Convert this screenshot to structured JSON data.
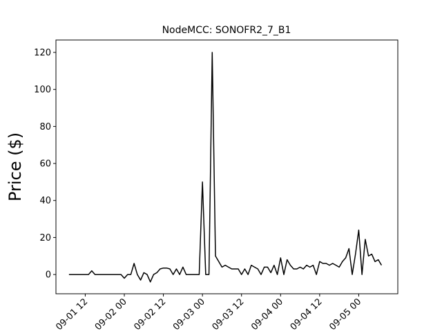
{
  "chart_data": {
    "type": "line",
    "title": "NodeMCC: SONOFR2_7_B1",
    "y_label": "Price ($)",
    "x": [
      "09-01 07",
      "09-01 08",
      "09-01 09",
      "09-01 10",
      "09-01 11",
      "09-01 12",
      "09-01 13",
      "09-01 14",
      "09-01 15",
      "09-01 16",
      "09-01 17",
      "09-01 18",
      "09-01 19",
      "09-01 20",
      "09-01 21",
      "09-01 22",
      "09-01 23",
      "09-02 00",
      "09-02 01",
      "09-02 02",
      "09-02 03",
      "09-02 04",
      "09-02 05",
      "09-02 06",
      "09-02 07",
      "09-02 08",
      "09-02 09",
      "09-02 10",
      "09-02 11",
      "09-02 12",
      "09-02 13",
      "09-02 14",
      "09-02 15",
      "09-02 16",
      "09-02 17",
      "09-02 18",
      "09-02 19",
      "09-02 20",
      "09-02 21",
      "09-02 22",
      "09-02 23",
      "09-03 00",
      "09-03 01",
      "09-03 02",
      "09-03 03",
      "09-03 04",
      "09-03 05",
      "09-03 06",
      "09-03 07",
      "09-03 08",
      "09-03 09",
      "09-03 10",
      "09-03 11",
      "09-03 12",
      "09-03 13",
      "09-03 14",
      "09-03 15",
      "09-03 16",
      "09-03 17",
      "09-03 18",
      "09-03 19",
      "09-03 20",
      "09-03 21",
      "09-03 22",
      "09-03 23",
      "09-04 00",
      "09-04 01",
      "09-04 02",
      "09-04 03",
      "09-04 04",
      "09-04 05",
      "09-04 06",
      "09-04 07",
      "09-04 08",
      "09-04 09",
      "09-04 10",
      "09-04 11",
      "09-04 12",
      "09-04 13",
      "09-04 14",
      "09-04 15",
      "09-04 16",
      "09-04 17",
      "09-04 18",
      "09-04 19",
      "09-04 20",
      "09-04 21",
      "09-04 22",
      "09-04 23",
      "09-05 00",
      "09-05 01",
      "09-05 02",
      "09-05 03",
      "09-05 04",
      "09-05 05",
      "09-05 06",
      "09-05 07"
    ],
    "series": [
      {
        "color": "#000000",
        "values": [
          0,
          0,
          0,
          0,
          0,
          0,
          0,
          2,
          0,
          0,
          0,
          0,
          0,
          0,
          0,
          0,
          0,
          -2,
          0,
          0,
          6,
          0,
          -3,
          1,
          0,
          -4,
          0,
          1,
          3,
          3.5,
          3.5,
          3,
          0,
          3,
          0,
          4,
          0,
          0,
          0,
          0,
          0,
          50,
          0,
          0,
          120,
          10,
          7,
          4,
          5,
          4,
          3,
          3,
          3,
          0,
          3,
          0,
          5,
          4,
          3,
          0,
          4,
          4,
          1,
          5,
          0,
          9,
          0,
          8,
          5,
          3,
          3,
          4,
          3,
          5,
          4,
          5,
          0,
          7,
          6,
          6,
          5,
          6,
          5,
          4,
          7,
          9,
          14,
          0,
          11,
          24,
          0,
          19,
          10,
          11,
          7,
          8,
          5
        ]
      }
    ],
    "xlim": [
      "09-01 03",
      "09-05 12"
    ],
    "xticks": [
      "09-01 12",
      "09-02 00",
      "09-02 12",
      "09-03 00",
      "09-03 12",
      "09-04 00",
      "09-04 12",
      "09-05 00"
    ],
    "ylim": [
      -10.4,
      126.7
    ],
    "yticks": [
      0,
      20,
      40,
      60,
      80,
      100,
      120
    ],
    "grid": false
  }
}
